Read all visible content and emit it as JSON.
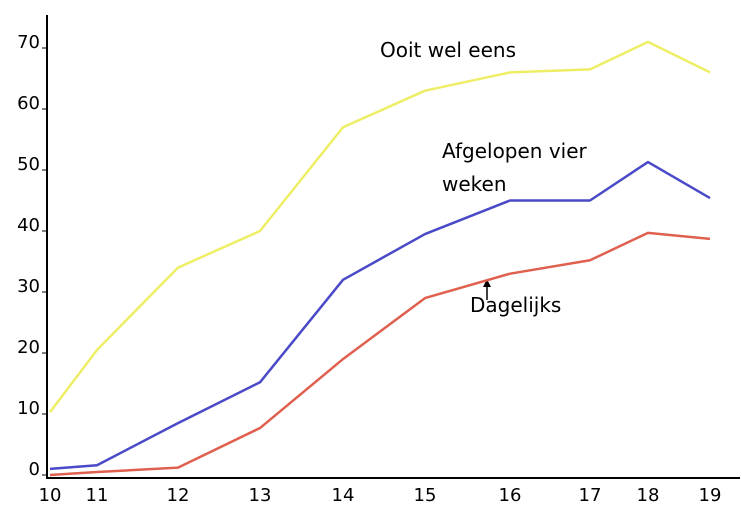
{
  "chart_data": {
    "type": "line",
    "categories": [
      "10",
      "11",
      "12",
      "13",
      "14",
      "15",
      "16",
      "17",
      "18",
      "19"
    ],
    "series": [
      {
        "name": "Ooit wel eens",
        "color": "#eeee66",
        "values": [
          10.3,
          20.5,
          34,
          40,
          57,
          63,
          66,
          66.5,
          71,
          66
        ]
      },
      {
        "name": "Afgelopen vier weken",
        "color": "#4a4ac8",
        "values": [
          1,
          1.6,
          8.5,
          15.2,
          32,
          39.5,
          45,
          45,
          51.3,
          45.4
        ]
      },
      {
        "name": "Dagelijks",
        "color": "#e06050",
        "values": [
          0,
          0.5,
          1.2,
          7.7,
          19,
          29,
          33,
          35.2,
          39.7,
          38.7
        ]
      }
    ],
    "ylim": [
      0,
      70
    ],
    "yticks": [
      0,
      10,
      20,
      30,
      40,
      50,
      60,
      70
    ]
  }
}
